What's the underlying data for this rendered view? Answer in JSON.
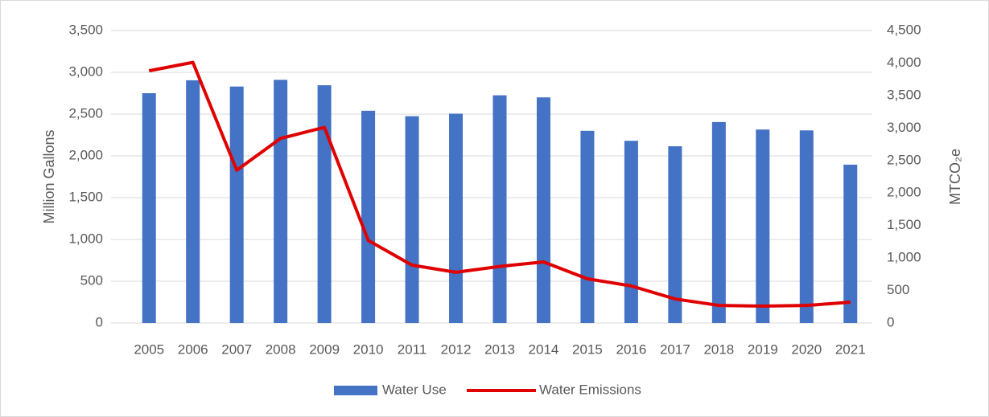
{
  "chart_data": {
    "type": "bar-line",
    "categories": [
      "2005",
      "2006",
      "2007",
      "2008",
      "2009",
      "2010",
      "2011",
      "2012",
      "2013",
      "2014",
      "2015",
      "2016",
      "2017",
      "2018",
      "2019",
      "2020",
      "2021"
    ],
    "y_label": "Million Gallons",
    "y2_label": "MTCO₂e",
    "series": [
      {
        "name": "Water Use",
        "type": "bar",
        "color": "#4472c4",
        "values": [
          2750,
          2905,
          2830,
          2910,
          2845,
          2540,
          2475,
          2505,
          2725,
          2700,
          2300,
          2180,
          2115,
          2405,
          2315,
          2305,
          1895
        ]
      },
      {
        "name": "Water Emissions",
        "type": "line",
        "axis": "y2",
        "color": "#e00000",
        "values": [
          3880,
          4010,
          2350,
          2840,
          3010,
          1270,
          890,
          780,
          870,
          940,
          680,
          570,
          370,
          270,
          260,
          270,
          320
        ]
      }
    ],
    "ylim": [
      0,
      3500
    ],
    "yticks": [
      0,
      500,
      {
        "value": 1000,
        "label": "1,000"
      },
      {
        "value": 1500,
        "label": "1,500"
      },
      {
        "value": 2000,
        "label": "2,000"
      },
      {
        "value": 2500,
        "label": "2,500"
      },
      {
        "value": 3000,
        "label": "3,000"
      },
      {
        "value": 3500,
        "label": "3,500"
      }
    ],
    "y2lim": [
      0,
      4500
    ],
    "y2ticks": [
      0,
      500,
      {
        "value": 1000,
        "label": "1,000"
      },
      {
        "value": 1500,
        "label": "1,500"
      },
      {
        "value": 2000,
        "label": "2,000"
      },
      {
        "value": 2500,
        "label": "2,500"
      },
      {
        "value": 3000,
        "label": "3,000"
      },
      {
        "value": 3500,
        "label": "3,500"
      },
      {
        "value": 4000,
        "label": "4,000"
      },
      {
        "value": 4500,
        "label": "4,500"
      }
    ],
    "grid": true,
    "legend": "bottom"
  }
}
